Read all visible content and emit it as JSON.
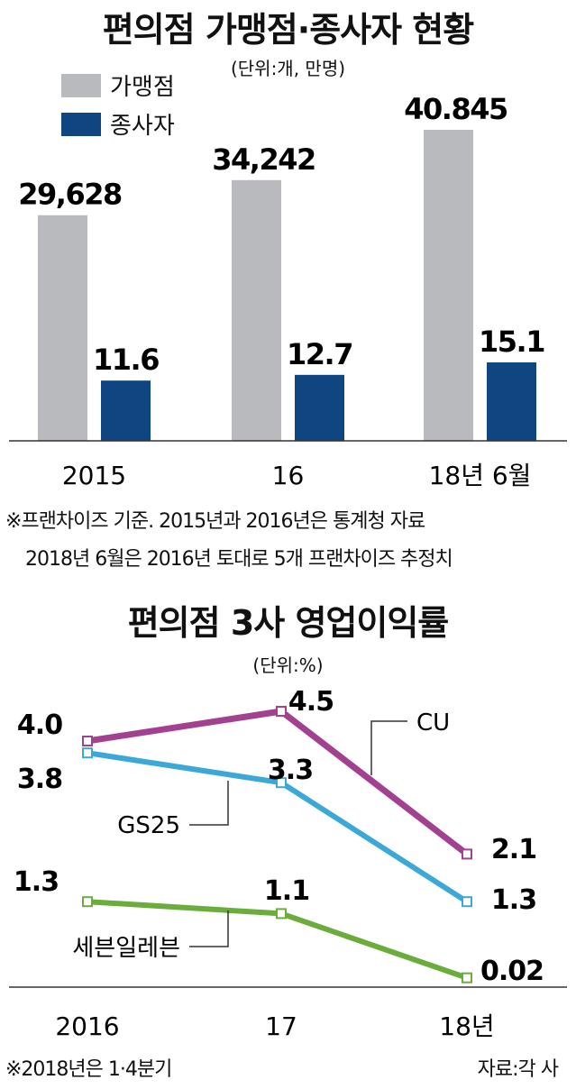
{
  "colors": {
    "franchise": "#b9babd",
    "employees": "#0f4681",
    "CU": "#a2418f",
    "GS25": "#3ba8d8",
    "seven": "#6aad3a"
  },
  "chart_data": [
    {
      "type": "bar",
      "title": "편의점 가맹점·종사자 현황",
      "unit": "(단위:개, 만명)",
      "categories": [
        "2015",
        "16",
        "18년 6월"
      ],
      "series": [
        {
          "name": "가맹점",
          "values": [
            29628,
            34242,
            40845
          ],
          "labels": [
            "29,628",
            "34,242",
            "40.845"
          ]
        },
        {
          "name": "종사자",
          "values": [
            11.6,
            12.7,
            15.1
          ],
          "labels": [
            "11.6",
            "12.7",
            "15.1"
          ]
        }
      ],
      "legend": "top-left",
      "notes": [
        "※프랜차이즈 기준. 2015년과 2016년은 통계청 자료",
        "2018년 6월은 2016년 토대로 5개 프랜차이즈 추정치"
      ]
    },
    {
      "type": "line",
      "title": "편의점 3사 영업이익률",
      "unit": "(단위:%)",
      "categories": [
        "2016",
        "17",
        "18년"
      ],
      "series": [
        {
          "name": "CU",
          "values": [
            4.0,
            4.5,
            2.1
          ],
          "labels": [
            "4.0",
            "4.5",
            "2.1"
          ]
        },
        {
          "name": "GS25",
          "values": [
            3.8,
            3.3,
            1.3
          ],
          "labels": [
            "3.8",
            "3.3",
            "1.3"
          ]
        },
        {
          "name": "세븐일레븐",
          "values": [
            1.3,
            1.1,
            0.02
          ],
          "labels": [
            "1.3",
            "1.1",
            "0.02"
          ]
        }
      ],
      "notes": [
        "※2018년은 1·4분기"
      ],
      "source": "자료:각 사"
    }
  ]
}
